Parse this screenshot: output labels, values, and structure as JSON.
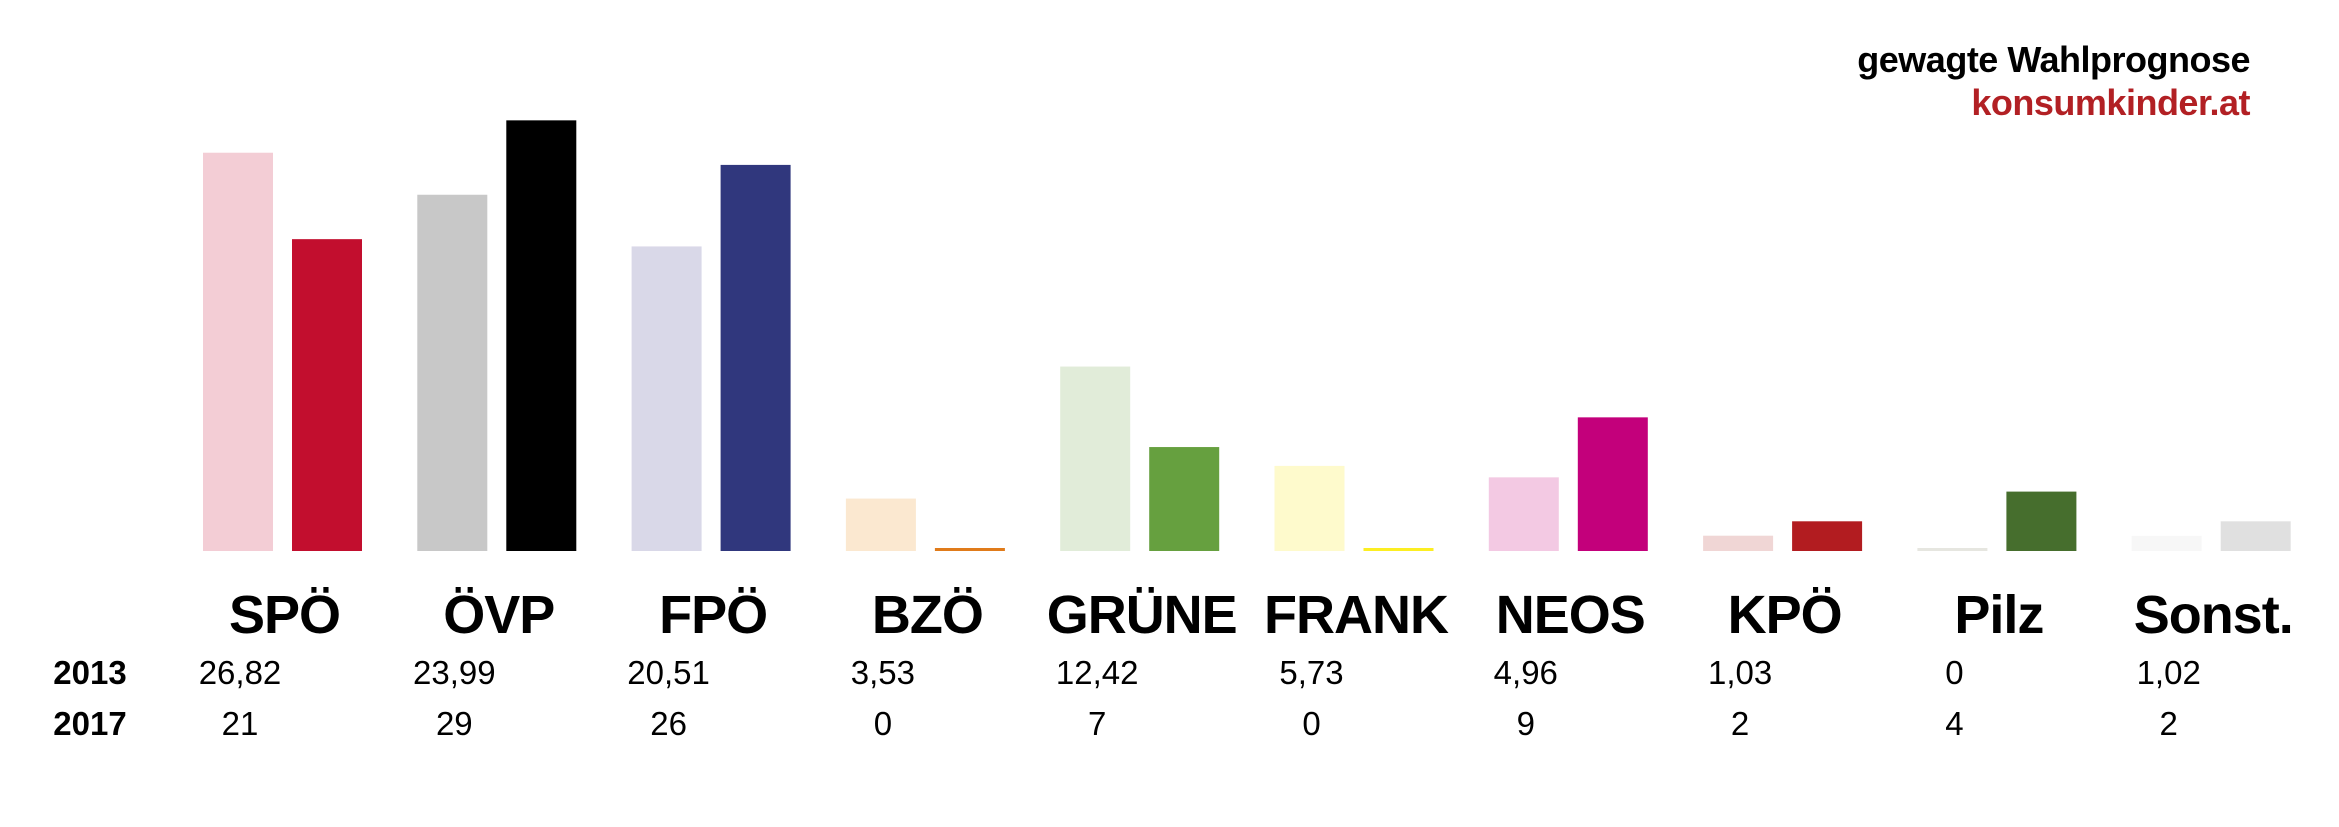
{
  "branding": {
    "title": "gewagte Wahlprognose",
    "site": "konsumkinder.at",
    "site_color": "#b22024"
  },
  "chart_data": {
    "type": "bar",
    "title": "gewagte Wahlprognose",
    "xlabel": "",
    "ylabel": "",
    "grid": false,
    "legend": "none",
    "ylim": [
      0,
      30
    ],
    "categories": [
      "SPÖ",
      "ÖVP",
      "FPÖ",
      "BZÖ",
      "GRÜNE",
      "FRANK",
      "NEOS",
      "KPÖ",
      "Pilz",
      "Sonst."
    ],
    "series": [
      {
        "name": "2013",
        "values": [
          26.82,
          23.99,
          20.51,
          3.53,
          12.42,
          5.73,
          4.96,
          1.03,
          0,
          1.02
        ],
        "labels": [
          "26,82",
          "23,99",
          "20,51",
          "3,53",
          "12,42",
          "5,73",
          "4,96",
          "1,03",
          "0",
          "1,02"
        ],
        "colors": [
          "#f3cdd5",
          "#c8c8c8",
          "#d9d8e8",
          "#fbe8d0",
          "#e1ecd9",
          "#fefacc",
          "#f3c9e3",
          "#f0d6d5",
          "#e6e6e0",
          "#f7f7f7"
        ]
      },
      {
        "name": "2017",
        "values": [
          21,
          29,
          26,
          0,
          7,
          0,
          9,
          2,
          4,
          2
        ],
        "labels": [
          "21",
          "29",
          "26",
          "0",
          "7",
          "0",
          "9",
          "2",
          "4",
          "2"
        ],
        "colors": [
          "#c20e2e",
          "#000000",
          "#30377d",
          "#e07b1a",
          "#66a03f",
          "#fcee22",
          "#c3007b",
          "#b21c20",
          "#466e2d",
          "#e0e0e0"
        ]
      }
    ]
  }
}
